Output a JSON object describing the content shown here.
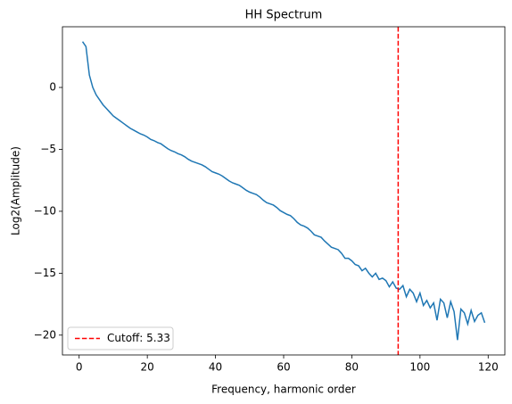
{
  "chart_data": {
    "type": "line",
    "title": "HH Spectrum",
    "xlabel": "Frequency, harmonic order",
    "ylabel": "Log2(Amplitude)",
    "x": [
      1,
      2,
      3,
      4,
      5,
      6,
      7,
      8,
      9,
      10,
      11,
      12,
      13,
      14,
      15,
      16,
      17,
      18,
      19,
      20,
      21,
      22,
      23,
      24,
      25,
      26,
      27,
      28,
      29,
      30,
      31,
      32,
      33,
      34,
      35,
      36,
      37,
      38,
      39,
      40,
      41,
      42,
      43,
      44,
      45,
      46,
      47,
      48,
      49,
      50,
      51,
      52,
      53,
      54,
      55,
      56,
      57,
      58,
      59,
      60,
      61,
      62,
      63,
      64,
      65,
      66,
      67,
      68,
      69,
      70,
      71,
      72,
      73,
      74,
      75,
      76,
      77,
      78,
      79,
      80,
      81,
      82,
      83,
      84,
      85,
      86,
      87,
      88,
      89,
      90,
      91,
      92,
      93,
      94,
      95,
      96,
      97,
      98,
      99,
      100,
      101,
      102,
      103,
      104,
      105,
      106,
      107,
      108,
      109,
      110,
      111,
      112,
      113,
      114,
      115,
      116,
      117,
      118,
      119
    ],
    "series": [
      {
        "name": "HH Spectrum",
        "color": "#1f77b4",
        "values": [
          3.7,
          3.3,
          1.0,
          0.0,
          -0.6,
          -1.0,
          -1.4,
          -1.7,
          -2.0,
          -2.3,
          -2.5,
          -2.7,
          -2.9,
          -3.1,
          -3.3,
          -3.45,
          -3.6,
          -3.75,
          -3.85,
          -4.0,
          -4.2,
          -4.3,
          -4.45,
          -4.55,
          -4.75,
          -4.95,
          -5.1,
          -5.2,
          -5.35,
          -5.45,
          -5.6,
          -5.8,
          -5.95,
          -6.05,
          -6.15,
          -6.25,
          -6.4,
          -6.6,
          -6.8,
          -6.9,
          -7.0,
          -7.15,
          -7.35,
          -7.55,
          -7.7,
          -7.8,
          -7.9,
          -8.1,
          -8.3,
          -8.45,
          -8.55,
          -8.65,
          -8.85,
          -9.1,
          -9.3,
          -9.4,
          -9.5,
          -9.7,
          -9.95,
          -10.1,
          -10.25,
          -10.35,
          -10.6,
          -10.9,
          -11.1,
          -11.2,
          -11.35,
          -11.6,
          -11.9,
          -12.0,
          -12.1,
          -12.4,
          -12.65,
          -12.9,
          -13.0,
          -13.1,
          -13.4,
          -13.8,
          -13.8,
          -14.0,
          -14.3,
          -14.4,
          -14.8,
          -14.6,
          -15.0,
          -15.3,
          -15.0,
          -15.5,
          -15.4,
          -15.6,
          -16.1,
          -15.7,
          -16.2,
          -16.3,
          -16.0,
          -16.9,
          -16.3,
          -16.6,
          -17.3,
          -16.6,
          -17.6,
          -17.2,
          -17.8,
          -17.4,
          -18.8,
          -17.1,
          -17.4,
          -18.6,
          -17.3,
          -18.1,
          -20.4,
          -17.9,
          -18.2,
          -19.1,
          -18.0,
          -18.9,
          -18.4,
          -18.2,
          -19.0
        ]
      }
    ],
    "vline": {
      "x": 93.6,
      "color": "#ff0000",
      "label": "Cutoff: 5.33"
    },
    "legend": "lower left",
    "xlim": [
      -4.9,
      124.9
    ],
    "xticks": [
      0,
      20,
      40,
      60,
      80,
      100,
      120
    ],
    "ylim": [
      -21.6,
      4.9
    ],
    "yticks": [
      {
        "value": -20,
        "label": "−20"
      },
      {
        "value": -15,
        "label": "−15"
      },
      {
        "value": -10,
        "label": "−10"
      },
      {
        "value": -5,
        "label": "−5"
      },
      0
    ],
    "grid": false
  }
}
